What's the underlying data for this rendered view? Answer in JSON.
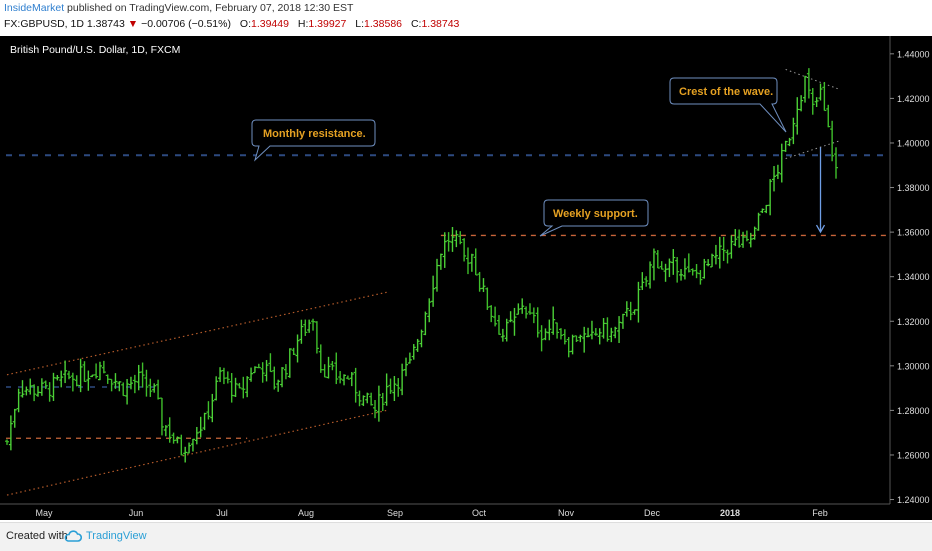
{
  "header": {
    "author": "InsideMarket",
    "published_text": "published on TradingView.com, February 07, 2018 12:30 EST",
    "symbol": "FX:GBPUSD, 1D",
    "price": "1.38743",
    "change_arrow": "▼",
    "change": "−0.00706 (−0.51%)",
    "o_label": "O:",
    "o_value": "1.39449",
    "h_label": "H:",
    "h_value": "1.39927",
    "l_label": "L:",
    "l_value": "1.38586",
    "c_label": "C:",
    "c_value": "1.38743"
  },
  "footer": {
    "created_with": "Created with",
    "brand": "TradingView"
  },
  "colors": {
    "background": "#000000",
    "bar": "#4cd137",
    "bar_down": "#3fbf2b",
    "support": "#c8643a",
    "resistance": "#2d4a80",
    "channel": "#b35a2a",
    "callout_text": "#e5a122",
    "callout_border": "#6f8fc0",
    "arrow": "#6f9ee6"
  },
  "chart_data": {
    "type": "ohlc",
    "title": "British Pound/U.S. Dollar, 1D, FXCM",
    "y_axis_position": "right",
    "ylim": [
      1.238,
      1.448
    ],
    "y_ticks": [
      "1.44000",
      "1.42000",
      "1.40000",
      "1.38000",
      "1.36000",
      "1.34000",
      "1.32000",
      "1.30000",
      "1.28000",
      "1.26000",
      "1.24000"
    ],
    "x_ticks": [
      "May",
      "Jun",
      "Jul",
      "Aug",
      "Sep",
      "Oct",
      "Nov",
      "Dec",
      "2018",
      "Feb"
    ],
    "close_anchors": [
      {
        "x": 0,
        "y": 1.266
      },
      {
        "x": 3,
        "y": 1.29
      },
      {
        "x": 10,
        "y": 1.289
      },
      {
        "x": 15,
        "y": 1.294
      },
      {
        "x": 20,
        "y": 1.296
      },
      {
        "x": 24,
        "y": 1.3
      },
      {
        "x": 27,
        "y": 1.295
      },
      {
        "x": 30,
        "y": 1.29
      },
      {
        "x": 34,
        "y": 1.294
      },
      {
        "x": 38,
        "y": 1.288
      },
      {
        "x": 40,
        "y": 1.275
      },
      {
        "x": 42,
        "y": 1.27
      },
      {
        "x": 45,
        "y": 1.262
      },
      {
        "x": 48,
        "y": 1.27
      },
      {
        "x": 51,
        "y": 1.275
      },
      {
        "x": 55,
        "y": 1.296
      },
      {
        "x": 58,
        "y": 1.29
      },
      {
        "x": 60,
        "y": 1.287
      },
      {
        "x": 63,
        "y": 1.298
      },
      {
        "x": 66,
        "y": 1.3
      },
      {
        "x": 69,
        "y": 1.292
      },
      {
        "x": 72,
        "y": 1.3
      },
      {
        "x": 75,
        "y": 1.312
      },
      {
        "x": 79,
        "y": 1.322
      },
      {
        "x": 81,
        "y": 1.3
      },
      {
        "x": 85,
        "y": 1.295
      },
      {
        "x": 88,
        "y": 1.295
      },
      {
        "x": 92,
        "y": 1.285
      },
      {
        "x": 95,
        "y": 1.28
      },
      {
        "x": 98,
        "y": 1.29
      },
      {
        "x": 101,
        "y": 1.294
      },
      {
        "x": 104,
        "y": 1.3
      },
      {
        "x": 107,
        "y": 1.318
      },
      {
        "x": 110,
        "y": 1.338
      },
      {
        "x": 112,
        "y": 1.352
      },
      {
        "x": 114,
        "y": 1.357
      },
      {
        "x": 116,
        "y": 1.355
      },
      {
        "x": 118,
        "y": 1.348
      },
      {
        "x": 120,
        "y": 1.35
      },
      {
        "x": 122,
        "y": 1.337
      },
      {
        "x": 124,
        "y": 1.328
      },
      {
        "x": 126,
        "y": 1.32
      },
      {
        "x": 128,
        "y": 1.314
      },
      {
        "x": 131,
        "y": 1.32
      },
      {
        "x": 133,
        "y": 1.328
      },
      {
        "x": 135,
        "y": 1.322
      },
      {
        "x": 138,
        "y": 1.315
      },
      {
        "x": 142,
        "y": 1.318
      },
      {
        "x": 145,
        "y": 1.31
      },
      {
        "x": 148,
        "y": 1.315
      },
      {
        "x": 150,
        "y": 1.31
      },
      {
        "x": 153,
        "y": 1.316
      },
      {
        "x": 156,
        "y": 1.314
      },
      {
        "x": 159,
        "y": 1.32
      },
      {
        "x": 162,
        "y": 1.328
      },
      {
        "x": 165,
        "y": 1.338
      },
      {
        "x": 167,
        "y": 1.35
      },
      {
        "x": 170,
        "y": 1.342
      },
      {
        "x": 173,
        "y": 1.346
      },
      {
        "x": 176,
        "y": 1.34
      },
      {
        "x": 179,
        "y": 1.342
      },
      {
        "x": 182,
        "y": 1.346
      },
      {
        "x": 185,
        "y": 1.352
      },
      {
        "x": 188,
        "y": 1.355
      },
      {
        "x": 191,
        "y": 1.354
      },
      {
        "x": 193,
        "y": 1.36
      },
      {
        "x": 195,
        "y": 1.37
      },
      {
        "x": 197,
        "y": 1.38
      },
      {
        "x": 200,
        "y": 1.393
      },
      {
        "x": 202,
        "y": 1.404
      },
      {
        "x": 204,
        "y": 1.418
      },
      {
        "x": 206,
        "y": 1.428
      },
      {
        "x": 208,
        "y": 1.415
      },
      {
        "x": 210,
        "y": 1.422
      },
      {
        "x": 212,
        "y": 1.405
      },
      {
        "x": 214,
        "y": 1.388
      }
    ],
    "total_bars": 215,
    "bar_spread": 0.0075,
    "lines": {
      "monthly_resistance": 1.3945,
      "weekly_support": 1.3585,
      "lower_support_left": 1.2675,
      "mid_ref_left": 1.2905
    },
    "channel": {
      "upper": [
        {
          "x": 0,
          "y": 1.296
        },
        {
          "x": 98,
          "y": 1.333
        }
      ],
      "lower": [
        {
          "x": 0,
          "y": 1.242
        },
        {
          "x": 98,
          "y": 1.28
        }
      ]
    },
    "wedge": {
      "upper": [
        {
          "x": 201,
          "y": 1.433
        },
        {
          "x": 215,
          "y": 1.424
        }
      ],
      "lower": [
        {
          "x": 201,
          "y": 1.393
        },
        {
          "x": 215,
          "y": 1.401
        }
      ]
    },
    "projection_arrow": {
      "x": 210,
      "from": 1.398,
      "to": 1.36
    },
    "annotations": [
      {
        "id": "monthly",
        "text": "Monthly resistance."
      },
      {
        "id": "weekly",
        "text": "Weekly support."
      },
      {
        "id": "crest",
        "text": "Crest of the wave."
      }
    ]
  }
}
